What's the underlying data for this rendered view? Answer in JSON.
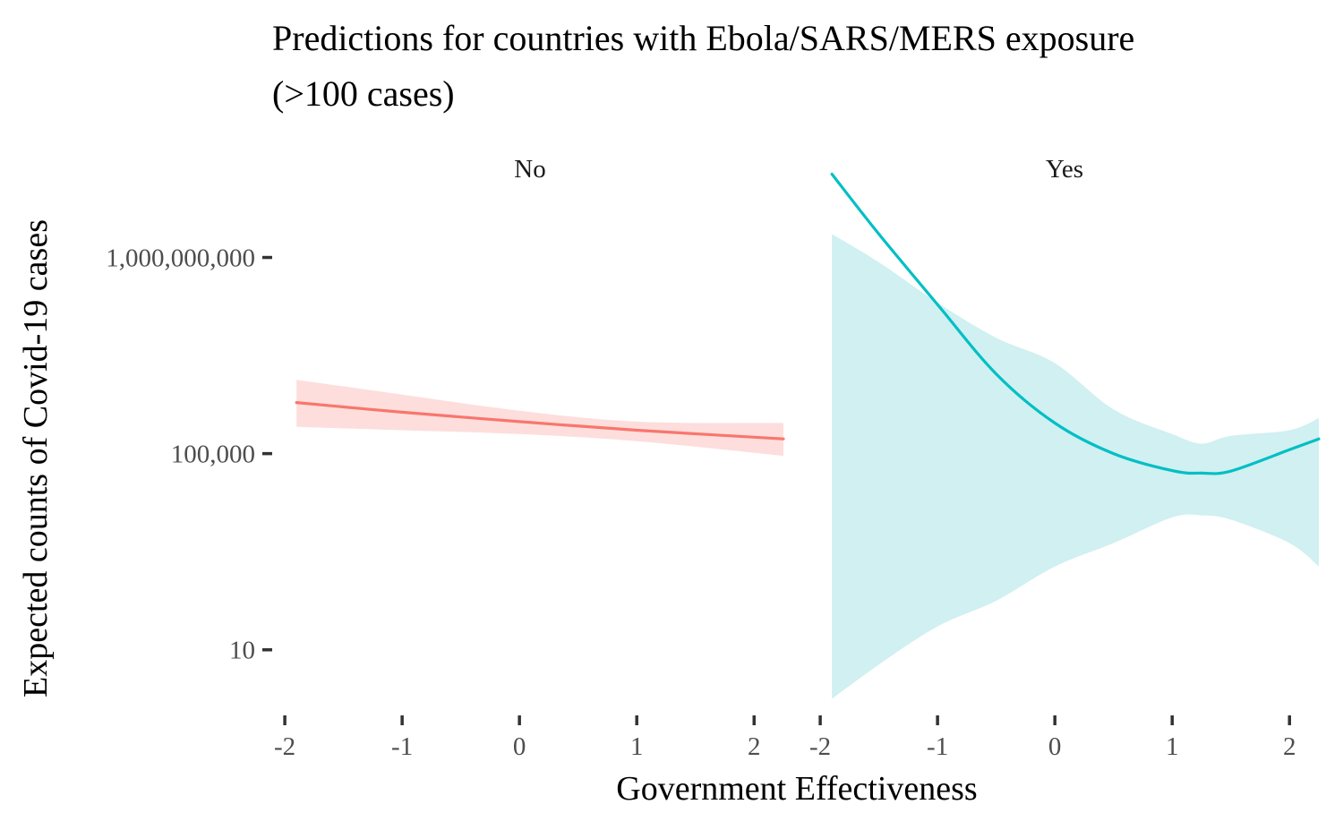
{
  "chart_data": {
    "type": "line",
    "title_lines": [
      "Predictions for countries with Ebola/SARS/MERS exposure",
      "(>100 cases)"
    ],
    "xlabel": "Government Effectiveness",
    "ylabel": "Expected counts of Covid-19 cases",
    "y_scale": "log10",
    "y_ticks": [
      10,
      100000,
      1000000000
    ],
    "y_tick_labels": [
      "10",
      "100,000",
      "1,000,000,000"
    ],
    "x_ticks": [
      -2,
      -1,
      0,
      1,
      2
    ],
    "x_tick_labels": [
      "-2",
      "-1",
      "0",
      "1",
      "2"
    ],
    "xlim": [
      -2.1,
      2.25
    ],
    "ylim": [
      0.5,
      100000000000
    ],
    "grid": false,
    "legend": "none",
    "panels": [
      {
        "strip_label": "No",
        "color": "#F8766D",
        "fill": "#FDDEDC",
        "x": [
          -1.9,
          -1.0,
          0.0,
          1.0,
          2.25
        ],
        "y": [
          1100000,
          700000,
          450000,
          300000,
          200000
        ],
        "lower": [
          350000,
          300000,
          250000,
          180000,
          90000
        ],
        "upper": [
          3200000,
          1600000,
          750000,
          450000,
          420000
        ]
      },
      {
        "strip_label": "Yes",
        "color": "#00BFC4",
        "fill": "#D0F0F1",
        "x": [
          -1.9,
          -1.5,
          -1.0,
          -0.5,
          0.0,
          0.5,
          1.0,
          1.25,
          1.5,
          2.0,
          2.25
        ],
        "y": [
          50000000000,
          3000000000,
          110000000,
          4200000,
          420000,
          100000,
          45000,
          40000,
          44000,
          120000,
          200000
        ],
        "lower": [
          1,
          5,
          30,
          100,
          500,
          1500,
          5000,
          5500,
          4500,
          1500,
          500
        ],
        "upper": [
          3000000000,
          800000000,
          120000000,
          23000000,
          7000000,
          800000,
          250000,
          160000,
          230000,
          300000,
          530000
        ]
      }
    ]
  }
}
